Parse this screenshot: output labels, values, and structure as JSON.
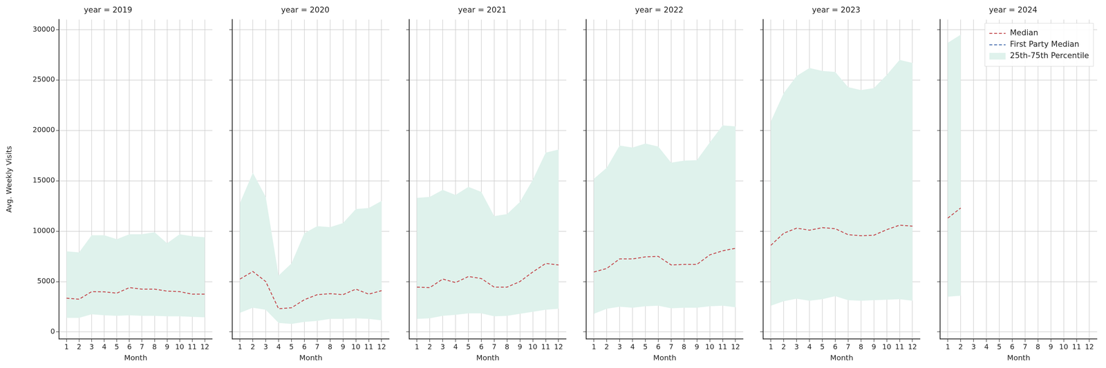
{
  "chart_data": [
    {
      "type": "line",
      "title": "year = 2019",
      "x_label": "Month",
      "y_label": "Avg. Weekly Visits",
      "x": [
        1,
        2,
        3,
        4,
        5,
        6,
        7,
        8,
        9,
        10,
        11,
        12
      ],
      "xlim": [
        0.4,
        12.6
      ],
      "xticks": [
        1,
        2,
        3,
        4,
        5,
        6,
        7,
        8,
        9,
        10,
        11,
        12
      ],
      "ylim": [
        -700,
        31000
      ],
      "yticks": [
        0,
        5000,
        10000,
        15000,
        20000,
        25000,
        30000
      ],
      "grid": true,
      "series": [
        {
          "name": "25th-75th Percentile",
          "type": "band",
          "color": "#dff2ec",
          "low": [
            1400,
            1400,
            1750,
            1650,
            1600,
            1650,
            1600,
            1600,
            1550,
            1550,
            1500,
            1450
          ],
          "high": [
            8000,
            7900,
            9600,
            9600,
            9200,
            9700,
            9700,
            9900,
            8800,
            9700,
            9500,
            9400
          ]
        },
        {
          "name": "Median",
          "color": "#c44e52",
          "line_style": "dashed",
          "values": [
            3350,
            3250,
            4000,
            3980,
            3850,
            4400,
            4250,
            4250,
            4050,
            4000,
            3750,
            3750
          ]
        },
        {
          "name": "First Party Median",
          "color": "#4c72b0",
          "line_style": "dashed",
          "values": [
            null,
            null,
            null,
            null,
            null,
            null,
            null,
            null,
            null,
            null,
            null,
            null
          ]
        }
      ]
    },
    {
      "type": "line",
      "title": "year = 2020",
      "x_label": "Month",
      "tick_labels": "x",
      "x": [
        1,
        2,
        3,
        4,
        5,
        6,
        7,
        8,
        9,
        10,
        11,
        12
      ],
      "xlim": [
        0.4,
        12.6
      ],
      "xticks": [
        1,
        2,
        3,
        4,
        5,
        6,
        7,
        8,
        9,
        10,
        11,
        12
      ],
      "ylim": [
        -700,
        31000
      ],
      "yticks": [
        0,
        5000,
        10000,
        15000,
        20000,
        25000,
        30000
      ],
      "grid": true,
      "series": [
        {
          "name": "25th-75th Percentile",
          "type": "band",
          "color": "#dff2ec",
          "low": [
            1900,
            2400,
            2200,
            900,
            800,
            1000,
            1100,
            1300,
            1300,
            1350,
            1300,
            1150
          ],
          "high": [
            12800,
            15800,
            13400,
            5600,
            6800,
            9800,
            10500,
            10400,
            10800,
            12200,
            12300,
            13000
          ]
        },
        {
          "name": "Median",
          "color": "#c44e52",
          "line_style": "dashed",
          "values": [
            5250,
            6000,
            5000,
            2300,
            2400,
            3200,
            3700,
            3800,
            3700,
            4250,
            3750,
            4100
          ]
        },
        {
          "name": "First Party Median",
          "color": "#4c72b0",
          "line_style": "dashed",
          "values": [
            null,
            null,
            null,
            null,
            null,
            null,
            null,
            null,
            null,
            null,
            null,
            null
          ]
        }
      ]
    },
    {
      "type": "line",
      "title": "year = 2021",
      "x_label": "Month",
      "tick_labels": "x",
      "x": [
        1,
        2,
        3,
        4,
        5,
        6,
        7,
        8,
        9,
        10,
        11,
        12
      ],
      "xlim": [
        0.4,
        12.6
      ],
      "xticks": [
        1,
        2,
        3,
        4,
        5,
        6,
        7,
        8,
        9,
        10,
        11,
        12
      ],
      "ylim": [
        -700,
        31000
      ],
      "yticks": [
        0,
        5000,
        10000,
        15000,
        20000,
        25000,
        30000
      ],
      "grid": true,
      "series": [
        {
          "name": "25th-75th Percentile",
          "type": "band",
          "color": "#dff2ec",
          "low": [
            1300,
            1350,
            1600,
            1700,
            1850,
            1850,
            1550,
            1600,
            1800,
            2000,
            2200,
            2300
          ],
          "high": [
            13300,
            13400,
            14100,
            13600,
            14400,
            13900,
            11500,
            11700,
            12900,
            15100,
            17800,
            18100
          ]
        },
        {
          "name": "Median",
          "color": "#c44e52",
          "line_style": "dashed",
          "values": [
            4450,
            4400,
            5250,
            4900,
            5500,
            5300,
            4450,
            4450,
            5000,
            5950,
            6800,
            6650
          ]
        },
        {
          "name": "First Party Median",
          "color": "#4c72b0",
          "line_style": "dashed",
          "values": [
            null,
            null,
            null,
            null,
            null,
            null,
            null,
            null,
            null,
            null,
            null,
            null
          ]
        }
      ]
    },
    {
      "type": "line",
      "title": "year = 2022",
      "x_label": "Month",
      "tick_labels": "x",
      "x": [
        1,
        2,
        3,
        4,
        5,
        6,
        7,
        8,
        9,
        10,
        11,
        12
      ],
      "xlim": [
        0.4,
        12.6
      ],
      "xticks": [
        1,
        2,
        3,
        4,
        5,
        6,
        7,
        8,
        9,
        10,
        11,
        12
      ],
      "ylim": [
        -700,
        31000
      ],
      "yticks": [
        0,
        5000,
        10000,
        15000,
        20000,
        25000,
        30000
      ],
      "grid": true,
      "series": [
        {
          "name": "25th-75th Percentile",
          "type": "band",
          "color": "#dff2ec",
          "low": [
            1800,
            2300,
            2500,
            2400,
            2550,
            2600,
            2350,
            2400,
            2400,
            2550,
            2600,
            2450
          ],
          "high": [
            15200,
            16300,
            18500,
            18300,
            18700,
            18400,
            16800,
            17000,
            17050,
            18800,
            20500,
            20400
          ]
        },
        {
          "name": "Median",
          "color": "#c44e52",
          "line_style": "dashed",
          "values": [
            5950,
            6300,
            7250,
            7250,
            7450,
            7500,
            6650,
            6700,
            6700,
            7650,
            8050,
            8300
          ]
        },
        {
          "name": "First Party Median",
          "color": "#4c72b0",
          "line_style": "dashed",
          "values": [
            null,
            null,
            null,
            null,
            null,
            null,
            null,
            null,
            null,
            null,
            null,
            null
          ]
        }
      ]
    },
    {
      "type": "line",
      "title": "year = 2023",
      "x_label": "Month",
      "tick_labels": "x",
      "x": [
        1,
        2,
        3,
        4,
        5,
        6,
        7,
        8,
        9,
        10,
        11,
        12
      ],
      "xlim": [
        0.4,
        12.6
      ],
      "xticks": [
        1,
        2,
        3,
        4,
        5,
        6,
        7,
        8,
        9,
        10,
        11,
        12
      ],
      "ylim": [
        -700,
        31000
      ],
      "yticks": [
        0,
        5000,
        10000,
        15000,
        20000,
        25000,
        30000
      ],
      "grid": true,
      "series": [
        {
          "name": "25th-75th Percentile",
          "type": "band",
          "color": "#dff2ec",
          "low": [
            2600,
            3050,
            3300,
            3100,
            3250,
            3550,
            3150,
            3100,
            3150,
            3200,
            3250,
            3100
          ],
          "high": [
            20900,
            23700,
            25400,
            26200,
            25900,
            25800,
            24300,
            24000,
            24200,
            25500,
            27000,
            26700
          ]
        },
        {
          "name": "Median",
          "color": "#c44e52",
          "line_style": "dashed",
          "values": [
            8600,
            9800,
            10300,
            10100,
            10350,
            10250,
            9650,
            9550,
            9600,
            10150,
            10600,
            10500
          ]
        },
        {
          "name": "First Party Median",
          "color": "#4c72b0",
          "line_style": "dashed",
          "values": [
            null,
            null,
            null,
            null,
            null,
            null,
            null,
            null,
            null,
            null,
            null,
            null
          ]
        }
      ]
    },
    {
      "type": "line",
      "title": "year = 2024",
      "x_label": "Month",
      "tick_labels": "x",
      "legend": "upper right",
      "x": [
        1,
        2,
        3,
        4,
        5,
        6,
        7,
        8,
        9,
        10,
        11,
        12
      ],
      "xlim": [
        0.4,
        12.6
      ],
      "xticks": [
        1,
        2,
        3,
        4,
        5,
        6,
        7,
        8,
        9,
        10,
        11,
        12
      ],
      "ylim": [
        -700,
        31000
      ],
      "yticks": [
        0,
        5000,
        10000,
        15000,
        20000,
        25000,
        30000
      ],
      "grid": true,
      "series": [
        {
          "name": "25th-75th Percentile",
          "type": "band",
          "color": "#dff2ec",
          "low": [
            3500,
            3600,
            null,
            null,
            null,
            null,
            null,
            null,
            null,
            null,
            null,
            null
          ],
          "high": [
            28700,
            29500,
            null,
            null,
            null,
            null,
            null,
            null,
            null,
            null,
            null,
            null
          ]
        },
        {
          "name": "Median",
          "color": "#c44e52",
          "line_style": "dashed",
          "values": [
            11300,
            12300,
            null,
            null,
            null,
            null,
            null,
            null,
            null,
            null,
            null,
            null
          ]
        },
        {
          "name": "First Party Median",
          "color": "#4c72b0",
          "line_style": "dashed",
          "values": [
            null,
            null,
            null,
            null,
            null,
            null,
            null,
            null,
            null,
            null,
            null,
            null
          ]
        }
      ]
    }
  ]
}
